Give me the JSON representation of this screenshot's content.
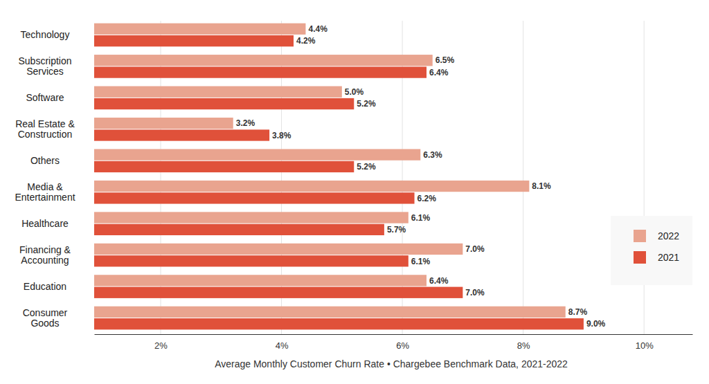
{
  "chart_data": {
    "type": "bar",
    "orientation": "horizontal",
    "xlabel": "Average Monthly Customer Churn Rate • Chargebee Benchmark Data, 2021-2022",
    "categories": [
      "Technology",
      "Subscription\nServices",
      "Software",
      "Real Estate &\nConstruction",
      "Others",
      "Media &\nEntertainment",
      "Healthcare",
      "Financing &\nAccounting",
      "Education",
      "Consumer\nGoods"
    ],
    "series": [
      {
        "name": "2022",
        "color": "#e9a48f",
        "values": [
          4.4,
          6.5,
          5.0,
          3.2,
          6.3,
          8.1,
          6.1,
          7.0,
          6.4,
          8.7
        ],
        "value_labels": [
          "4.4%",
          "6.5%",
          "5.0%",
          "3.2%",
          "6.3%",
          "8.1%",
          "6.1%",
          "7.0%",
          "6.4%",
          "8.7%"
        ]
      },
      {
        "name": "2021",
        "color": "#e0513a",
        "values": [
          4.2,
          6.4,
          5.2,
          3.8,
          5.2,
          6.2,
          5.7,
          6.1,
          7.0,
          9.0
        ],
        "value_labels": [
          "4.2%",
          "6.4%",
          "5.2%",
          "3.8%",
          "5.2%",
          "6.2%",
          "5.7%",
          "6.1%",
          "7.0%",
          "9.0%"
        ]
      }
    ],
    "xlim": [
      0.9,
      10.8
    ],
    "xticks": [
      {
        "value": 2,
        "label": "2%"
      },
      {
        "value": 4,
        "label": "4%"
      },
      {
        "value": 6,
        "label": "6%"
      },
      {
        "value": 8,
        "label": "8%"
      },
      {
        "value": 10,
        "label": "10%"
      }
    ],
    "grid": true,
    "legend": "right",
    "data_labels": true
  }
}
